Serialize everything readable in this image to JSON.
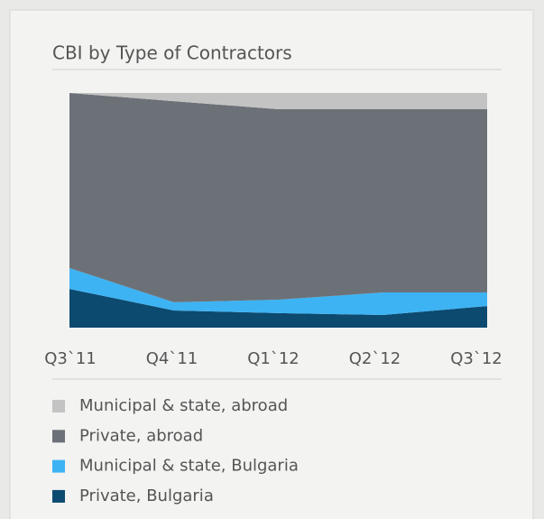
{
  "chart_data": {
    "type": "area",
    "stacked": true,
    "title": "CBI by Type of Contractors",
    "categories": [
      "Q3`11",
      "Q4`11",
      "Q1`12",
      "Q2`12",
      "Q3`12"
    ],
    "ylim": [
      0,
      100
    ],
    "series": [
      {
        "name": "Municipal & state, abroad",
        "color": "#c3c3c3",
        "values": [
          0,
          3.5,
          6.9,
          6.9,
          6.9
        ]
      },
      {
        "name": "Private, abroad",
        "color": "#6c7177",
        "values": [
          74.6,
          85.7,
          81.2,
          78.1,
          78.1
        ]
      },
      {
        "name": "Municipal & state, Bulgaria",
        "color": "#3db3f3",
        "values": [
          8.9,
          3.5,
          5.7,
          9.6,
          5.8
        ]
      },
      {
        "name": "Private, Bulgaria",
        "color": "#0d4a70",
        "values": [
          16.5,
          7.3,
          6.2,
          5.4,
          9.2
        ]
      }
    ]
  }
}
